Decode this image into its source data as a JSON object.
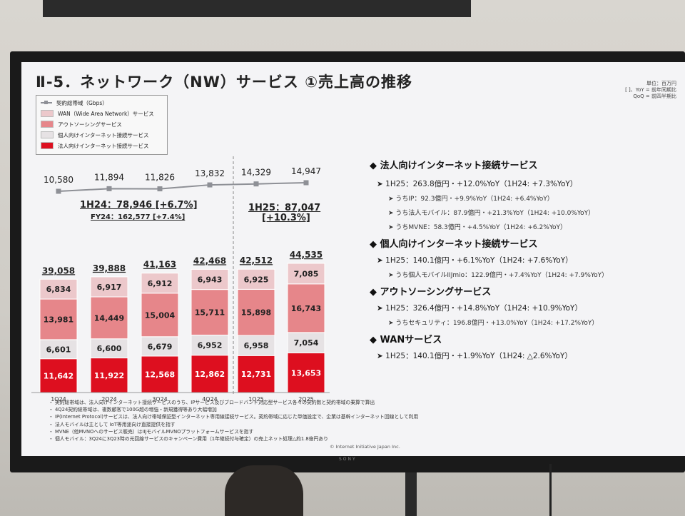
{
  "slide": {
    "title": "Ⅱ-5．ネットワーク（NW）サービス ①売上高の推移",
    "units": [
      "単位：百万円",
      "[ ]、YoY = 前年同期比",
      "QoQ = 前四半期比"
    ]
  },
  "legend": {
    "items": [
      {
        "label": "契約総帯域（Gbps）",
        "color": "#8e9096",
        "kind": "line"
      },
      {
        "label": "WAN（Wide Area Network）サービス",
        "color": "#ecc8cb",
        "kind": "box"
      },
      {
        "label": "アウトソーシングサービス",
        "color": "#e6868a",
        "kind": "box"
      },
      {
        "label": "個人向けインターネット接続サービス",
        "color": "#e6e2e4",
        "kind": "box"
      },
      {
        "label": "法人向けインターネット接続サービス",
        "color": "#dd0f1f",
        "kind": "box"
      }
    ]
  },
  "headers": {
    "h24_main": "1H24：78,946 [+6.7%]",
    "h24_sub": "FY24：162,577 [+7.4%]",
    "h25_main": "1H25：87,047",
    "h25_sub": "[+10.3%]"
  },
  "chart_data": {
    "type": "bar",
    "stacked": true,
    "categories": [
      "1Q24",
      "2Q24",
      "3Q24",
      "4Q24",
      "1Q25",
      "2Q25"
    ],
    "totals": [
      39058,
      39888,
      41163,
      42468,
      42512,
      44535
    ],
    "totals_label": [
      "39,058",
      "39,888",
      "41,163",
      "42,468",
      "42,512",
      "44,535"
    ],
    "series": [
      {
        "name": "法人向けインターネット接続サービス",
        "color": "#dd0f1f",
        "label_color": "#ffffff",
        "values": [
          11642,
          11922,
          12568,
          12862,
          12731,
          13653
        ],
        "labels": [
          "11,642",
          "11,922",
          "12,568",
          "12,862",
          "12,731",
          "13,653"
        ]
      },
      {
        "name": "個人向けインターネット接続サービス",
        "color": "#e6e2e4",
        "label_color": "#222222",
        "values": [
          6601,
          6600,
          6679,
          6952,
          6958,
          7054
        ],
        "labels": [
          "6,601",
          "6,600",
          "6,679",
          "6,952",
          "6,958",
          "7,054"
        ]
      },
      {
        "name": "アウトソーシングサービス",
        "color": "#e6868a",
        "label_color": "#222222",
        "values": [
          13981,
          14449,
          15004,
          15711,
          15898,
          16743
        ],
        "labels": [
          "13,981",
          "14,449",
          "15,004",
          "15,711",
          "15,898",
          "16,743"
        ]
      },
      {
        "name": "WAN（Wide Area Network）サービス",
        "color": "#ecc8cb",
        "label_color": "#222222",
        "values": [
          6834,
          6917,
          6912,
          6943,
          6925,
          7085
        ],
        "labels": [
          "6,834",
          "6,917",
          "6,912",
          "6,943",
          "6,925",
          "7,085"
        ]
      }
    ],
    "line_series": {
      "name": "契約総帯域（Gbps）",
      "values": [
        10580,
        11894,
        11826,
        13832,
        14329,
        14947
      ],
      "labels": [
        "10,580",
        "11,894",
        "11,826",
        "13,832",
        "14,329",
        "14,947"
      ]
    }
  },
  "bullets": [
    {
      "heading": "法人向けインターネット接続サービス",
      "main": "1H25：263.8億円・+12.0%YoY（1H24: +7.3%YoY）",
      "subs": [
        "うちIP：92.3億円・+9.9%YoY（1H24: +6.4%YoY）",
        "うち法人モバイル：87.9億円・+21.3%YoY（1H24: +10.0%YoY）",
        "うちMVNE：58.3億円・+4.5%YoY（1H24: +6.2%YoY）"
      ]
    },
    {
      "heading": "個人向けインターネット接続サービス",
      "main": "1H25：140.1億円・+6.1%YoY（1H24: +7.6%YoY）",
      "subs": [
        "うち個人モバイルIIJmio：122.9億円・+7.4%YoY（1H24: +7.9%YoY）"
      ]
    },
    {
      "heading": "アウトソーシングサービス",
      "main": "1H25：326.4億円・+14.8%YoY（1H24: +10.9%YoY）",
      "subs": [
        "うちセキュリティ：196.8億円・+13.0%YoY（1H24: +17.2%YoY）"
      ]
    },
    {
      "heading": "WANサービス",
      "main": "1H25：140.1億円・+1.9%YoY（1H24: △2.6%YoY）",
      "subs": []
    }
  ],
  "notes": [
    "・ 契約総帯域は、法人向けインターネット接続サービスのうち、IPサービス及びブロードバンド対応型サービス各々の契約数と契約帯域の乗算で算出",
    "・ 4Q24契約総帯域は、複数顧客で100G超の増強・新規獲得等あり大幅増加",
    "・ IP(Internet Protocol)サービスは、法人向け帯域保証型インターネット専用線接続サービス。契約帯域に応じた単価設定で、企業は基幹インターネット回線として利用",
    "・ 法人モバイルは主として IoT等用途向け直接提供を指す",
    "・ MVNE（他MVNOへのサービス販売）はIIJモバイルMVNOプラットフォームサービスを指す",
    "・ 個人モバイル：3Q24に3Q23時の光回線サービスのキャンペーン費用（1年継続付与確定）の売上ネット処理△約1.8億円あり"
  ],
  "copyright": "© Internet Initiative Japan Inc.",
  "brand": "SONY"
}
